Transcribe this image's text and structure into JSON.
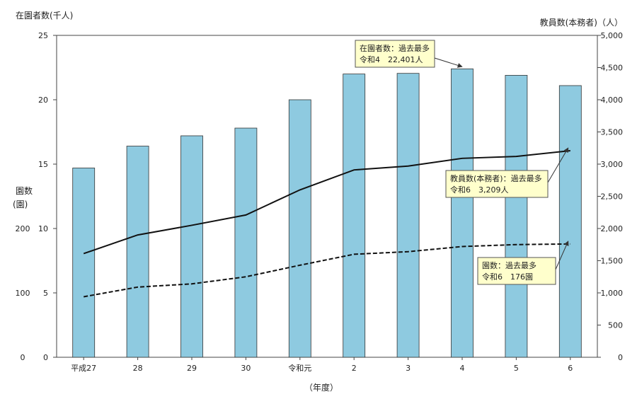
{
  "chart_data": {
    "type": "bar",
    "categories": [
      "平成27",
      "28",
      "29",
      "30",
      "令和元",
      "2",
      "3",
      "4",
      "5",
      "6"
    ],
    "xlabel": "（年度）",
    "left_axis": {
      "title": "在園者数(千人)",
      "ylim": [
        0,
        25
      ],
      "ticks": [
        "0",
        "5",
        "10",
        "15",
        "20",
        "25"
      ]
    },
    "right_axis": {
      "title": "教員数(本務者)（人）",
      "ylim": [
        0,
        5000
      ],
      "ticks": [
        "0",
        "500",
        "1,000",
        "1,500",
        "2,000",
        "2,500",
        "3,000",
        "3,500",
        "4,000",
        "4,500",
        "5,000"
      ]
    },
    "secondary_left_axis": {
      "title_line1": "園数",
      "title_line2": "(園)",
      "ticks": [
        "0",
        "100",
        "200"
      ]
    },
    "series": [
      {
        "name": "在園者数",
        "kind": "bar",
        "axis": "left",
        "color": "#8ecae0",
        "values": [
          14.7,
          16.4,
          17.2,
          17.8,
          20.0,
          22.0,
          22.05,
          22.401,
          21.9,
          21.1
        ]
      },
      {
        "name": "教員数(本務者)",
        "kind": "line",
        "axis": "right",
        "style": "solid",
        "values": [
          1610,
          1900,
          2050,
          2210,
          2600,
          2910,
          2970,
          3090,
          3120,
          3209
        ]
      },
      {
        "name": "園数",
        "kind": "line",
        "axis": "right",
        "style": "dashed",
        "values": [
          940,
          1090,
          1140,
          1250,
          1430,
          1600,
          1640,
          1720,
          1750,
          1760
        ]
      }
    ],
    "annotations": [
      {
        "target_series": 0,
        "target_index": 7,
        "line1": "在園者数：過去最多",
        "line2": "令和4　22,401人"
      },
      {
        "target_series": 1,
        "target_index": 9,
        "line1": "教員数(本務者)：過去最多",
        "line2": "令和6　3,209人"
      },
      {
        "target_series": 2,
        "target_index": 9,
        "line1": "園数：過去最多",
        "line2": "令和6　176園"
      }
    ],
    "grid": false,
    "legend": "none"
  }
}
